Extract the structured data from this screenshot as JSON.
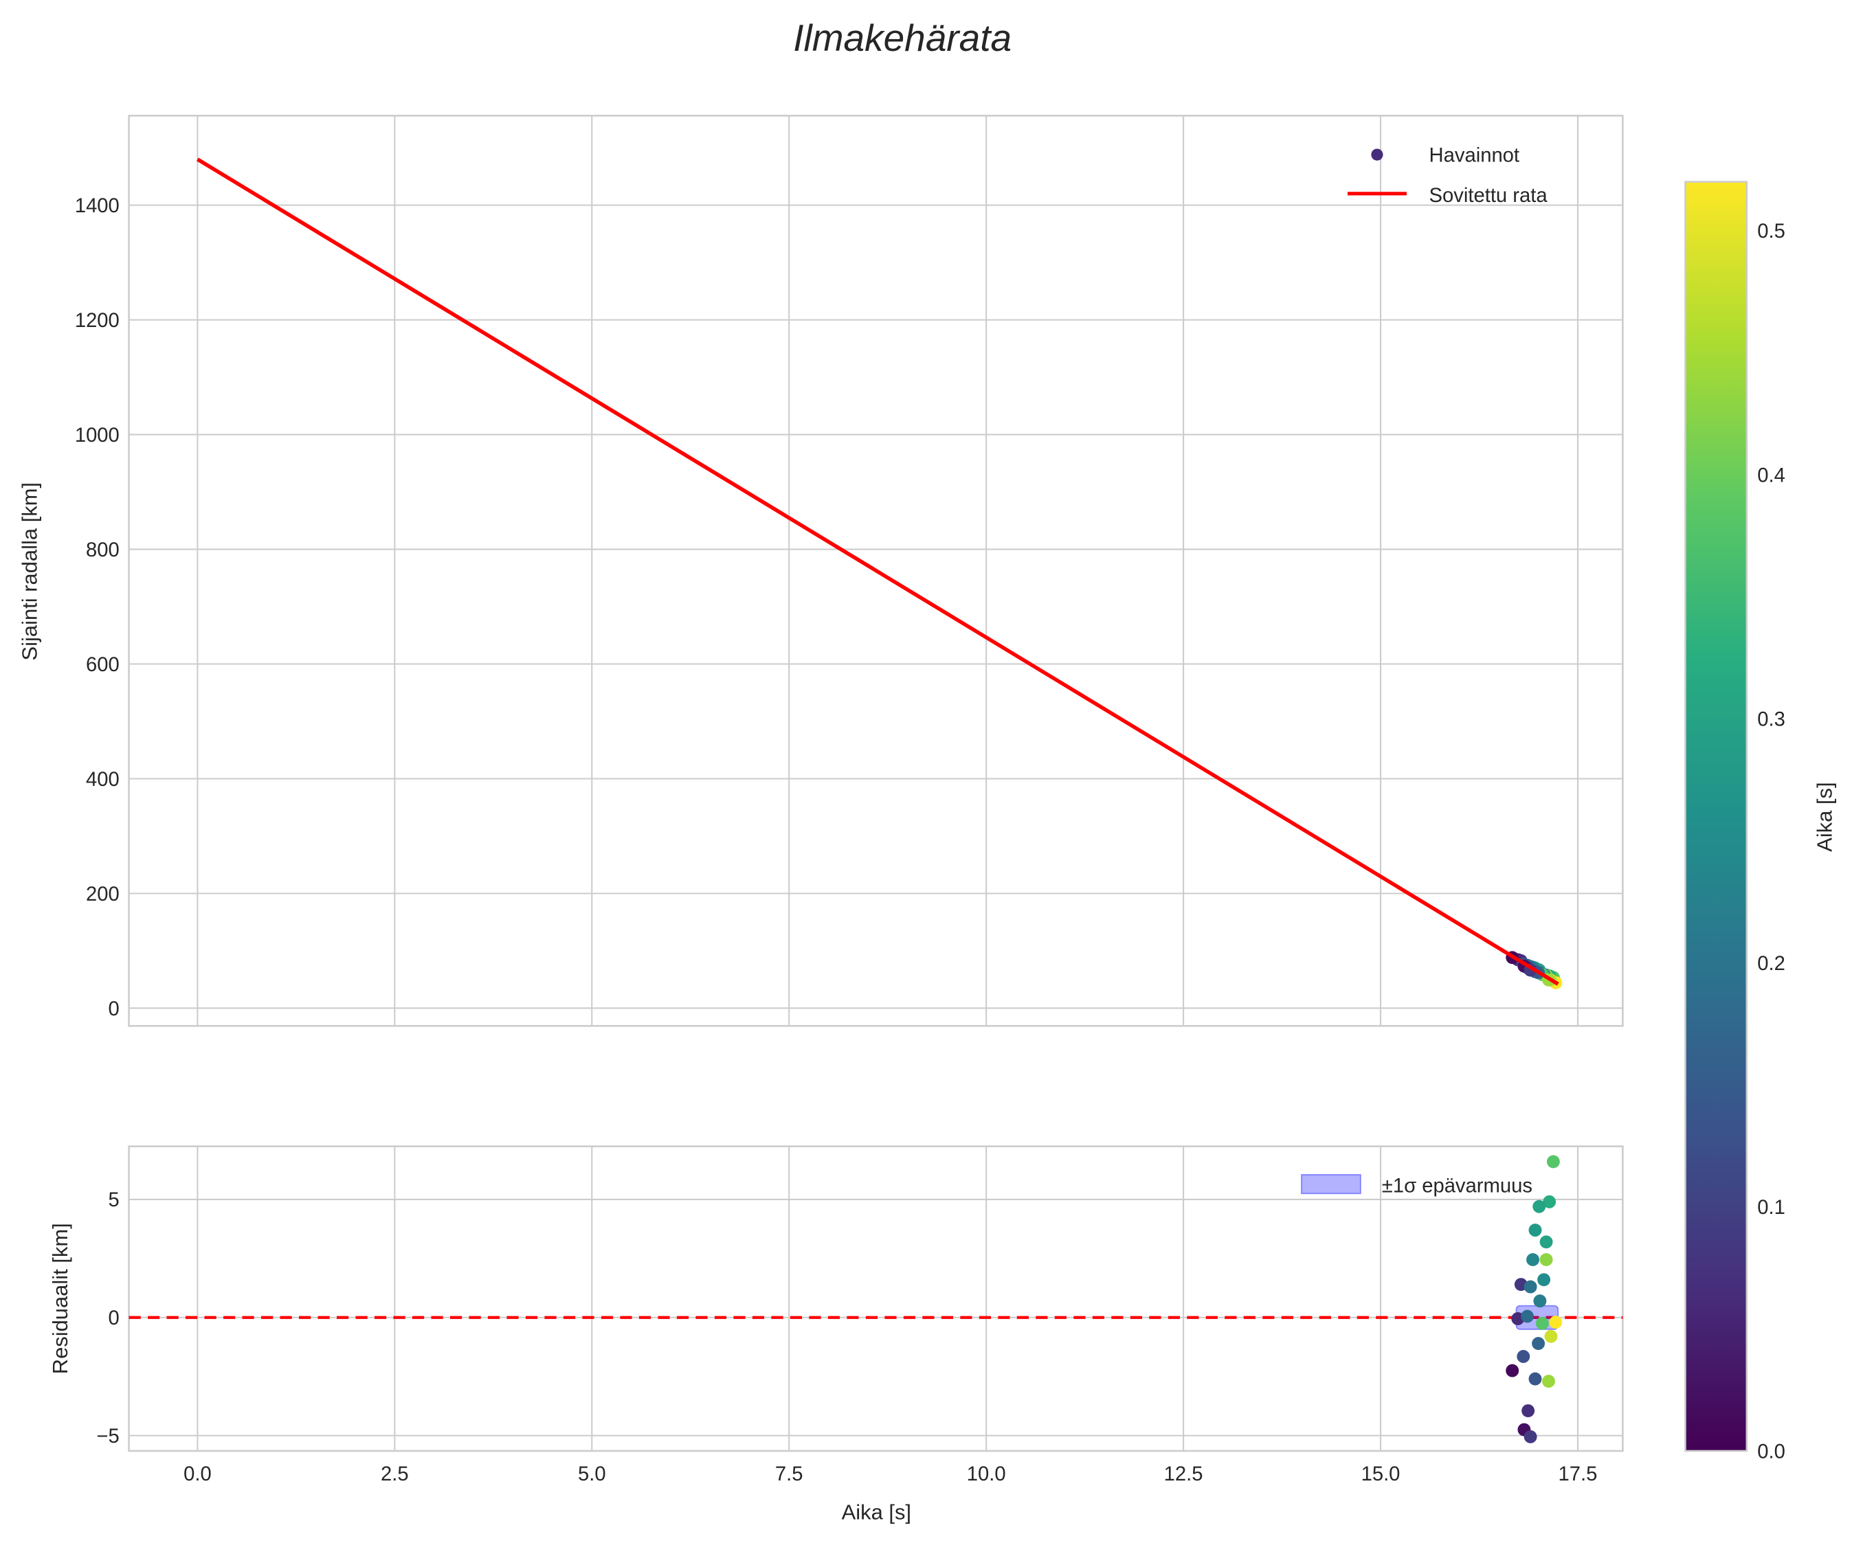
{
  "chart_data": [
    {
      "type": "line+scatter",
      "title": "Ilmakehärata",
      "xlabel": "",
      "ylabel": "Sijainti radalla [km]",
      "xlim": [
        -0.87,
        18.07
      ],
      "ylim": [
        -31,
        1556
      ],
      "xticks": [
        0,
        2.5,
        5,
        7.5,
        10,
        12.5,
        15,
        17.5
      ],
      "xtick_labels": [
        "0.0",
        "2.5",
        "5.0",
        "7.5",
        "10.0",
        "12.5",
        "15.0",
        "17.5"
      ],
      "yticks": [
        0,
        200,
        400,
        600,
        800,
        1000,
        1200,
        1400
      ],
      "ytick_labels": [
        "0",
        "200",
        "400",
        "600",
        "800",
        "1000",
        "1200",
        "1400"
      ],
      "grid": true,
      "legend": {
        "placement": "top-right",
        "entries": [
          "Havainnot",
          "Sovitettu rata"
        ]
      },
      "fitted_line": {
        "name": "Sovitettu rata",
        "color": "#ff0000",
        "x": [
          0,
          17.25
        ],
        "y": [
          1480,
          42
        ]
      },
      "observations": {
        "name": "Havainnot",
        "x": [
          17.19,
          17.14,
          17.01,
          16.96,
          17.1,
          16.93,
          17.1,
          16.78,
          16.9,
          17.07,
          17.02,
          16.74,
          16.86,
          17.05,
          17.22,
          17.16,
          17.0,
          16.81,
          16.67,
          16.96,
          17.13,
          16.87,
          16.82,
          16.9
        ],
        "y": [
          53.6,
          56.1,
          66.8,
          69.9,
          57.7,
          71.2,
          57.0,
          82.6,
          72.5,
          58.6,
          61.9,
          84.5,
          74.6,
          58.5,
          44.3,
          48.7,
          61.8,
          77.1,
          88.2,
          63.6,
          49.3,
          69.8,
          73.2,
          66.2
        ],
        "color_value": [
          0.38,
          0.32,
          0.3,
          0.28,
          0.3,
          0.24,
          0.43,
          0.08,
          0.2,
          0.25,
          0.22,
          0.06,
          0.18,
          0.38,
          0.52,
          0.48,
          0.17,
          0.13,
          0.01,
          0.14,
          0.44,
          0.07,
          0.02,
          0.09
        ]
      }
    },
    {
      "type": "scatter",
      "xlabel": "Aika [s]",
      "ylabel": "Residuaalit [km]",
      "xlim": [
        -0.87,
        18.07
      ],
      "ylim": [
        -5.65,
        7.25
      ],
      "xticks": [
        0,
        2.5,
        5,
        7.5,
        10,
        12.5,
        15,
        17.5
      ],
      "xtick_labels": [
        "0.0",
        "2.5",
        "5.0",
        "7.5",
        "10.0",
        "12.5",
        "15.0",
        "17.5"
      ],
      "yticks": [
        -5,
        0,
        5
      ],
      "ytick_labels": [
        "−5",
        "0",
        "5"
      ],
      "grid": true,
      "legend": {
        "placement": "top-right",
        "entries": [
          "±1σ epävarmuus"
        ]
      },
      "zero_line": {
        "y": 0,
        "color": "#ff0000",
        "style": "dashed"
      },
      "uncertainty_band": {
        "name": "±1σ epävarmuus",
        "x": [
          16.72,
          17.25
        ],
        "y": [
          -0.5,
          0.5
        ],
        "color": "#0000ff"
      },
      "residuals": [
        6.6,
        4.9,
        4.7,
        3.7,
        3.2,
        2.45,
        2.45,
        1.4,
        1.3,
        1.6,
        0.7,
        -0.05,
        0.05,
        -0.25,
        -0.2,
        -0.8,
        -1.1,
        -1.65,
        -2.25,
        -2.6,
        -2.7,
        -3.95,
        -4.75,
        -5.05
      ]
    },
    {
      "type": "colorbar",
      "label": "Aika [s]",
      "colormap": "viridis",
      "range": [
        0,
        0.52
      ],
      "ticks": [
        0,
        0.1,
        0.2,
        0.3,
        0.4,
        0.5
      ],
      "tick_labels": [
        "0.0",
        "0.1",
        "0.2",
        "0.3",
        "0.4",
        "0.5"
      ]
    }
  ]
}
